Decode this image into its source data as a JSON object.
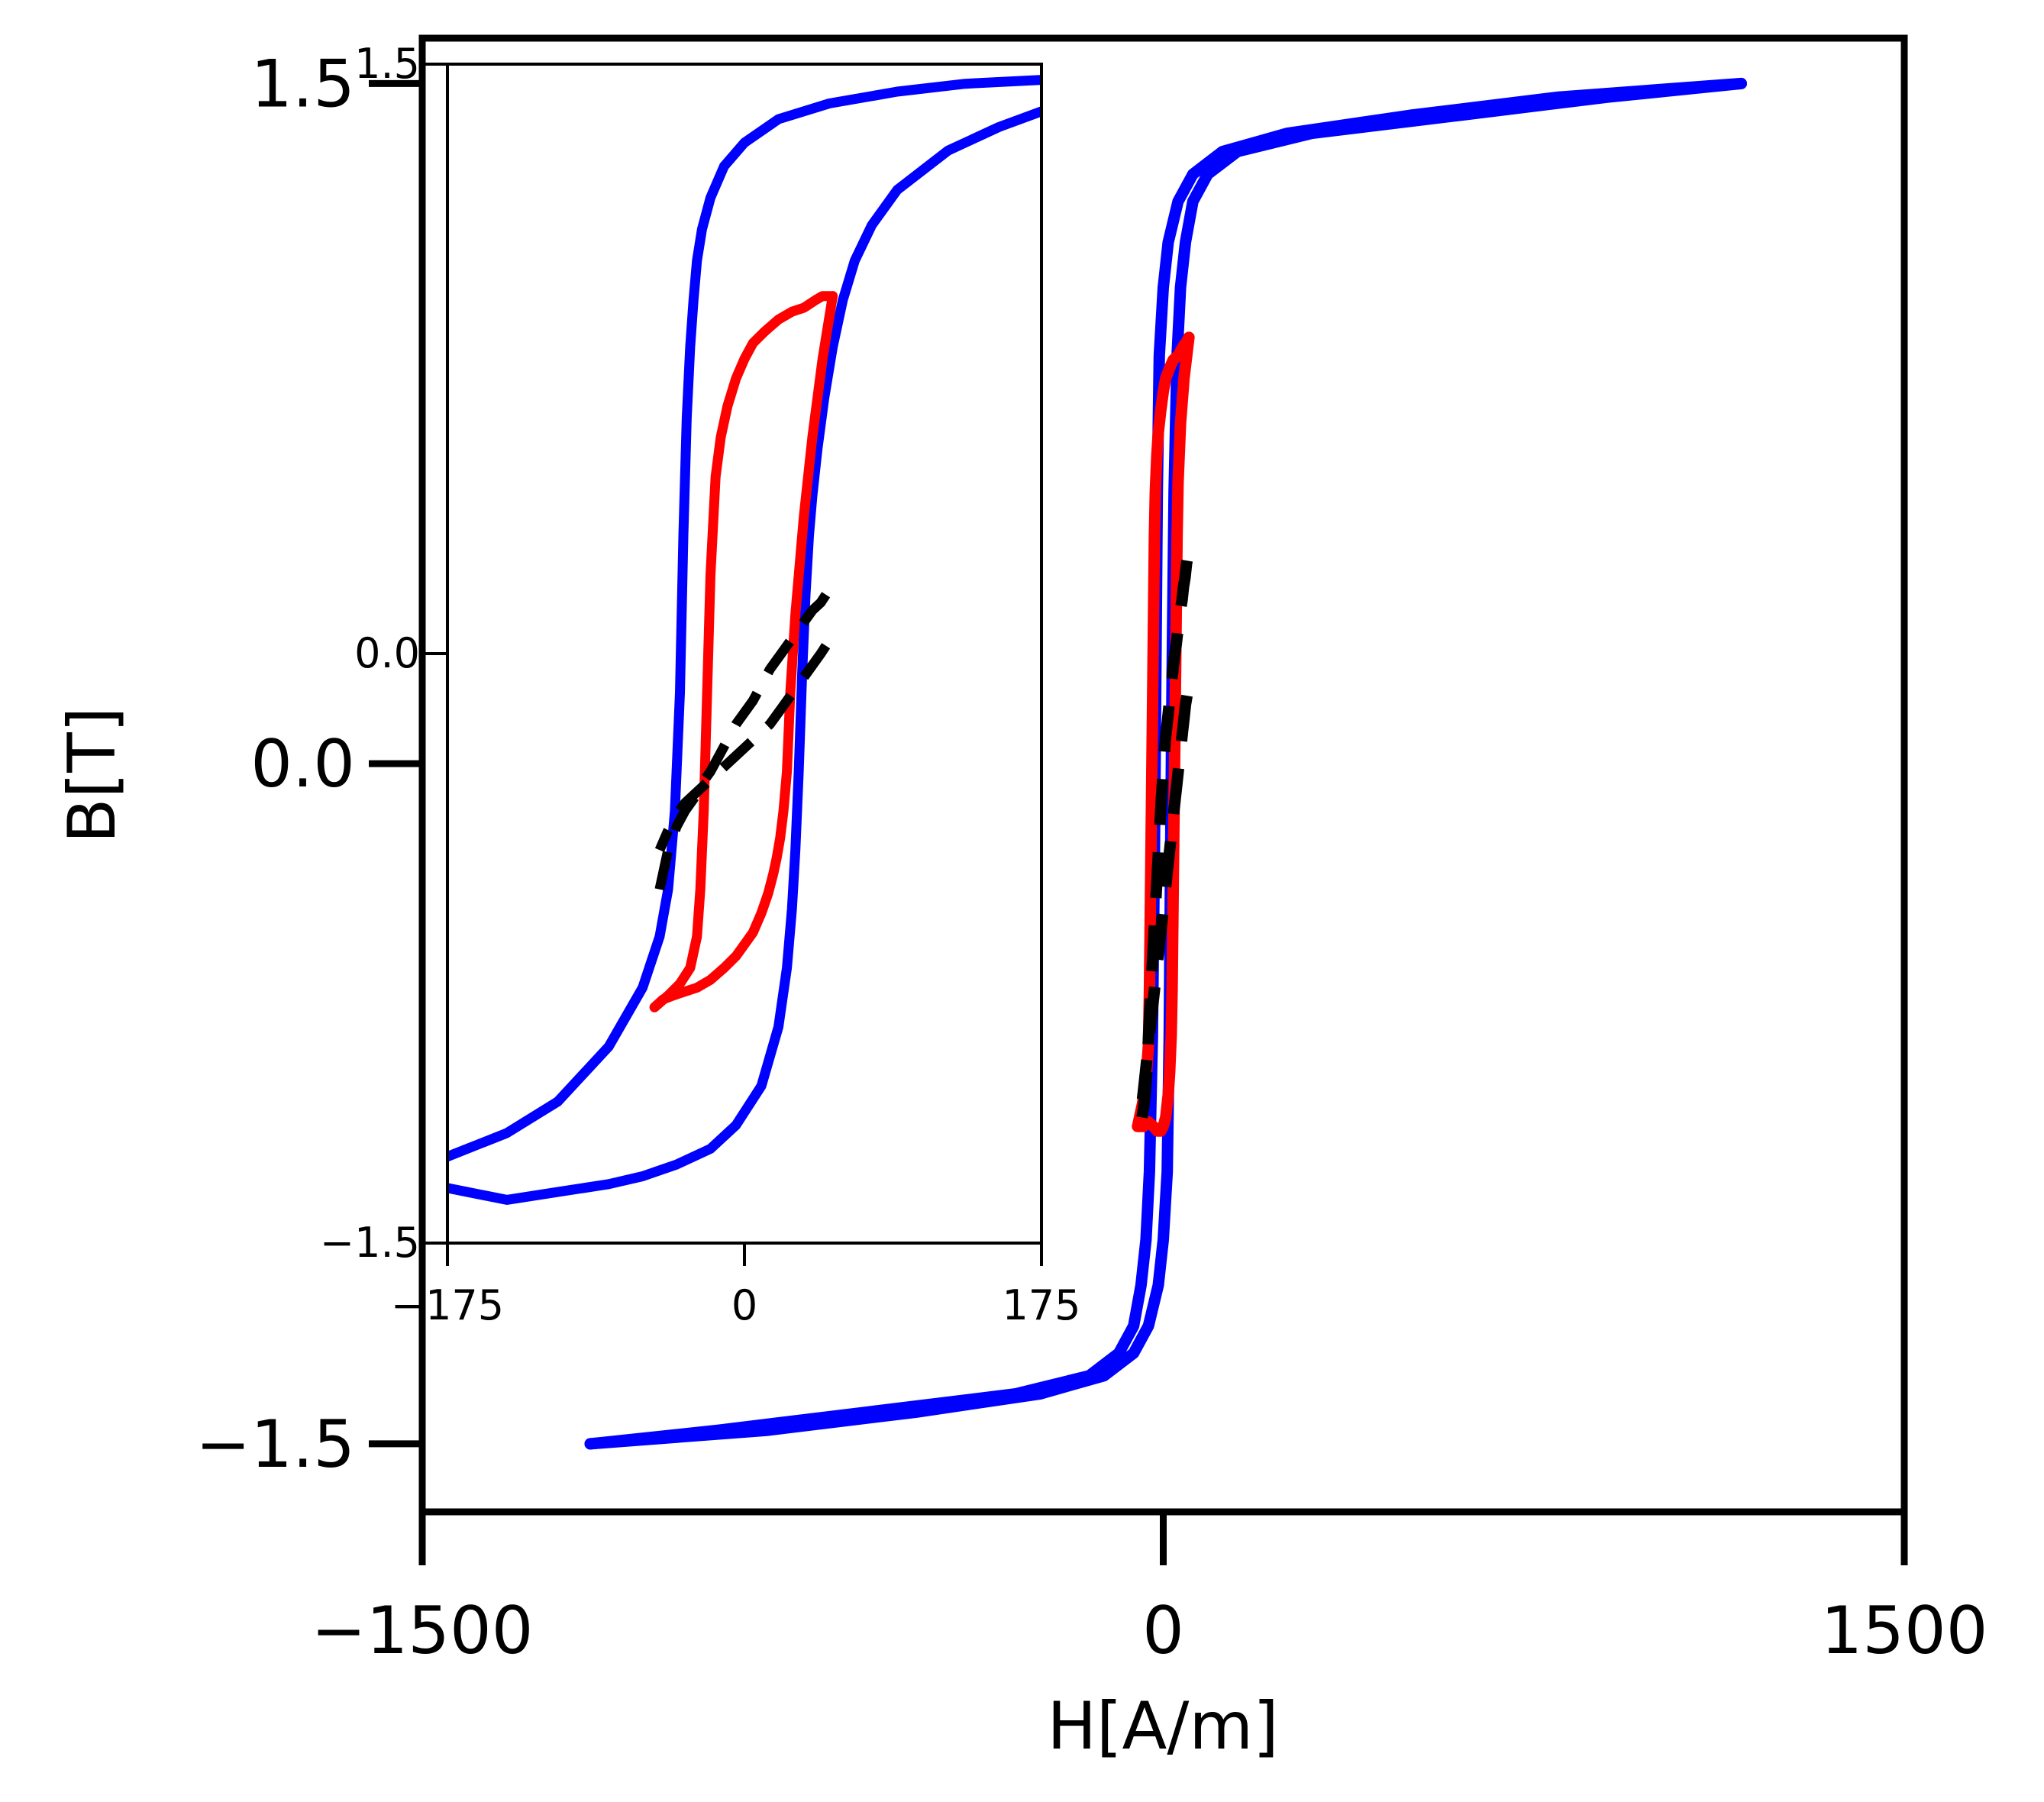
{
  "chart_data": [
    {
      "type": "line",
      "panel": "main",
      "xlabel": "H[A/m]",
      "ylabel": "B[T]",
      "xlim": [
        -1500,
        1500
      ],
      "ylim": [
        -1.65,
        1.6
      ],
      "xticks": [
        -1500,
        0,
        1500
      ],
      "xtick_labels": [
        "−1500",
        "0",
        "1500"
      ],
      "yticks": [
        -1.5,
        0.0,
        1.5
      ],
      "ytick_labels": [
        "−1.5",
        "0.0",
        "1.5"
      ],
      "grid": false,
      "series": [
        {
          "color": "#0000ff",
          "style": "solid",
          "x": [
            1170,
            900,
            600,
            300,
            150,
            90,
            60,
            45,
            35,
            28,
            22,
            18,
            15,
            12,
            8,
            0,
            -10,
            -30,
            -60,
            -120,
            -250,
            -500,
            -800,
            -1160
          ],
          "y": [
            1.5,
            1.47,
            1.43,
            1.39,
            1.35,
            1.3,
            1.24,
            1.15,
            1.05,
            0.9,
            0.6,
            0.2,
            -0.2,
            -0.6,
            -0.9,
            -1.05,
            -1.15,
            -1.24,
            -1.3,
            -1.35,
            -1.39,
            -1.43,
            -1.47,
            -1.5
          ]
        },
        {
          "color": "#0000ff",
          "style": "solid",
          "x": [
            -1160,
            -900,
            -600,
            -300,
            -150,
            -90,
            -60,
            -45,
            -35,
            -28,
            -22,
            -18,
            -15,
            -12,
            -8,
            0,
            10,
            30,
            60,
            120,
            250,
            500,
            800,
            1170
          ],
          "y": [
            -1.5,
            -1.47,
            -1.43,
            -1.39,
            -1.35,
            -1.3,
            -1.24,
            -1.15,
            -1.05,
            -0.9,
            -0.6,
            -0.2,
            0.2,
            0.6,
            0.9,
            1.05,
            1.15,
            1.24,
            1.3,
            1.35,
            1.39,
            1.43,
            1.47,
            1.5
          ]
        },
        {
          "color": "#ff0000",
          "style": "solid",
          "x": [
            -52,
            -42,
            -35,
            -30,
            -28,
            -26,
            -24,
            -22,
            -20,
            -18,
            -16,
            -13,
            -10,
            -5,
            0,
            5,
            12,
            20,
            30,
            40,
            47,
            52
          ],
          "y": [
            -0.8,
            -0.75,
            -0.7,
            -0.62,
            -0.5,
            -0.3,
            -0.1,
            0.1,
            0.3,
            0.5,
            0.6,
            0.68,
            0.73,
            0.78,
            0.82,
            0.85,
            0.87,
            0.89,
            0.9,
            0.92,
            0.93,
            0.94
          ]
        },
        {
          "color": "#ff0000",
          "style": "solid",
          "x": [
            52,
            42,
            35,
            30,
            28,
            26,
            24,
            22,
            20,
            18,
            16,
            13,
            10,
            5,
            0,
            -5,
            -12,
            -20,
            -30,
            -40,
            -47,
            -52
          ],
          "y": [
            0.94,
            0.85,
            0.75,
            0.62,
            0.5,
            0.3,
            0.1,
            -0.1,
            -0.3,
            -0.5,
            -0.6,
            -0.68,
            -0.73,
            -0.78,
            -0.8,
            -0.81,
            -0.81,
            -0.8,
            -0.79,
            -0.8,
            -0.8,
            -0.8
          ]
        },
        {
          "color": "#000000",
          "style": "dashed",
          "x": [
            -43,
            -40,
            -37,
            -34,
            -31,
            -28,
            -25,
            -22,
            -19,
            -16,
            -13,
            -10,
            -7,
            -4,
            -1,
            2,
            5,
            8,
            11,
            14,
            17,
            20,
            23,
            26,
            29,
            32,
            35,
            38,
            41,
            44,
            47,
            50
          ],
          "y": [
            -0.78,
            -0.76,
            -0.73,
            -0.69,
            -0.63,
            -0.56,
            -0.5,
            -0.44,
            -0.38,
            -0.32,
            -0.26,
            -0.2,
            -0.14,
            -0.08,
            -0.03,
            0.02,
            0.06,
            0.09,
            0.12,
            0.15,
            0.18,
            0.21,
            0.24,
            0.26,
            0.29,
            0.31,
            0.34,
            0.36,
            0.39,
            0.41,
            0.44,
            0.46
          ]
        },
        {
          "color": "#000000",
          "style": "dashed",
          "x": [
            48,
            45,
            42,
            39,
            36,
            33,
            30,
            27,
            24,
            21,
            18,
            15,
            12,
            9,
            6,
            3,
            0,
            -3,
            -6,
            -9,
            -12,
            -15,
            -18,
            -21,
            -24,
            -27,
            -30,
            -33,
            -36,
            -39,
            -42
          ],
          "y": [
            0.15,
            0.13,
            0.1,
            0.07,
            0.04,
            0.01,
            -0.02,
            -0.05,
            -0.08,
            -0.11,
            -0.14,
            -0.17,
            -0.2,
            -0.23,
            -0.26,
            -0.29,
            -0.32,
            -0.35,
            -0.38,
            -0.41,
            -0.44,
            -0.47,
            -0.5,
            -0.53,
            -0.56,
            -0.59,
            -0.62,
            -0.65,
            -0.68,
            -0.71,
            -0.74
          ]
        }
      ]
    },
    {
      "type": "line",
      "panel": "inset",
      "xlabel": "",
      "ylabel": "",
      "xlim": [
        -175,
        175
      ],
      "ylim": [
        -1.5,
        1.5
      ],
      "xticks": [
        -175,
        0,
        175
      ],
      "xtick_labels": [
        "−175",
        "0",
        "175"
      ],
      "yticks": [
        -1.5,
        0.0,
        1.5
      ],
      "ytick_labels": [
        "−1.5",
        "0.0",
        "1.5"
      ],
      "grid": false,
      "series": [
        {
          "color": "#0000ff",
          "style": "solid",
          "x": [
            175,
            150,
            120,
            90,
            75,
            65,
            58,
            52,
            47,
            43,
            40,
            38,
            36,
            34,
            32,
            30,
            28,
            25,
            20,
            10,
            -5,
            -20,
            -40,
            -60,
            -80,
            -110,
            -140,
            -175
          ],
          "y": [
            1.38,
            1.34,
            1.28,
            1.18,
            1.09,
            1.0,
            0.9,
            0.78,
            0.65,
            0.52,
            0.4,
            0.3,
            0.15,
            -0.05,
            -0.3,
            -0.5,
            -0.65,
            -0.8,
            -0.95,
            -1.1,
            -1.2,
            -1.26,
            -1.3,
            -1.33,
            -1.35,
            -1.37,
            -1.39,
            -1.36
          ]
        },
        {
          "color": "#0000ff",
          "style": "solid",
          "x": [
            -175,
            -140,
            -110,
            -80,
            -60,
            -50,
            -45,
            -41,
            -38,
            -36,
            -34,
            -32,
            -30,
            -28,
            -25,
            -20,
            -12,
            0,
            20,
            50,
            90,
            130,
            175
          ],
          "y": [
            -1.28,
            -1.22,
            -1.14,
            -1.0,
            -0.85,
            -0.72,
            -0.6,
            -0.4,
            -0.1,
            0.3,
            0.6,
            0.78,
            0.9,
            1.0,
            1.08,
            1.16,
            1.24,
            1.3,
            1.36,
            1.4,
            1.43,
            1.45,
            1.46
          ]
        },
        {
          "color": "#ff0000",
          "style": "solid",
          "x": [
            -53,
            -45,
            -38,
            -32,
            -28,
            -26,
            -24,
            -22,
            -20,
            -17,
            -14,
            -10,
            -5,
            0,
            5,
            12,
            20,
            28,
            35,
            42,
            46,
            52
          ],
          "y": [
            -0.9,
            -0.87,
            -0.84,
            -0.8,
            -0.72,
            -0.6,
            -0.4,
            -0.1,
            0.2,
            0.45,
            0.55,
            0.63,
            0.7,
            0.75,
            0.79,
            0.82,
            0.85,
            0.87,
            0.88,
            0.9,
            0.91,
            0.91
          ]
        },
        {
          "color": "#ff0000",
          "style": "solid",
          "x": [
            52,
            46,
            40,
            35,
            30,
            27,
            25,
            23,
            21,
            19,
            17,
            14,
            10,
            5,
            0,
            -5,
            -12,
            -20,
            -28,
            -35,
            -42,
            -48,
            -53
          ],
          "y": [
            0.91,
            0.75,
            0.55,
            0.35,
            0.1,
            -0.1,
            -0.3,
            -0.4,
            -0.47,
            -0.52,
            -0.56,
            -0.61,
            -0.66,
            -0.71,
            -0.74,
            -0.77,
            -0.8,
            -0.83,
            -0.85,
            -0.86,
            -0.87,
            -0.88,
            -0.9
          ]
        },
        {
          "color": "#000000",
          "style": "dashed",
          "x": [
            -50,
            -45,
            -40,
            -35,
            -30,
            -25,
            -20,
            -15,
            -10,
            -5,
            0,
            5,
            10,
            15,
            20,
            25,
            30,
            35,
            40,
            45,
            48
          ],
          "y": [
            -0.6,
            -0.5,
            -0.44,
            -0.4,
            -0.37,
            -0.33,
            -0.3,
            -0.26,
            -0.22,
            -0.18,
            -0.15,
            -0.12,
            -0.08,
            -0.04,
            -0.01,
            0.02,
            0.05,
            0.08,
            0.11,
            0.13,
            0.15
          ]
        },
        {
          "color": "#000000",
          "style": "dashed",
          "x": [
            48,
            45,
            40,
            35,
            30,
            25,
            20,
            15,
            10,
            5,
            0,
            -5,
            -10,
            -15,
            -20,
            -25,
            -30,
            -35,
            -40,
            -45,
            -50
          ],
          "y": [
            0.02,
            0.0,
            -0.03,
            -0.06,
            -0.09,
            -0.12,
            -0.15,
            -0.18,
            -0.2,
            -0.22,
            -0.24,
            -0.26,
            -0.28,
            -0.3,
            -0.32,
            -0.34,
            -0.36,
            -0.38,
            -0.41,
            -0.45,
            -0.5
          ]
        }
      ]
    }
  ]
}
